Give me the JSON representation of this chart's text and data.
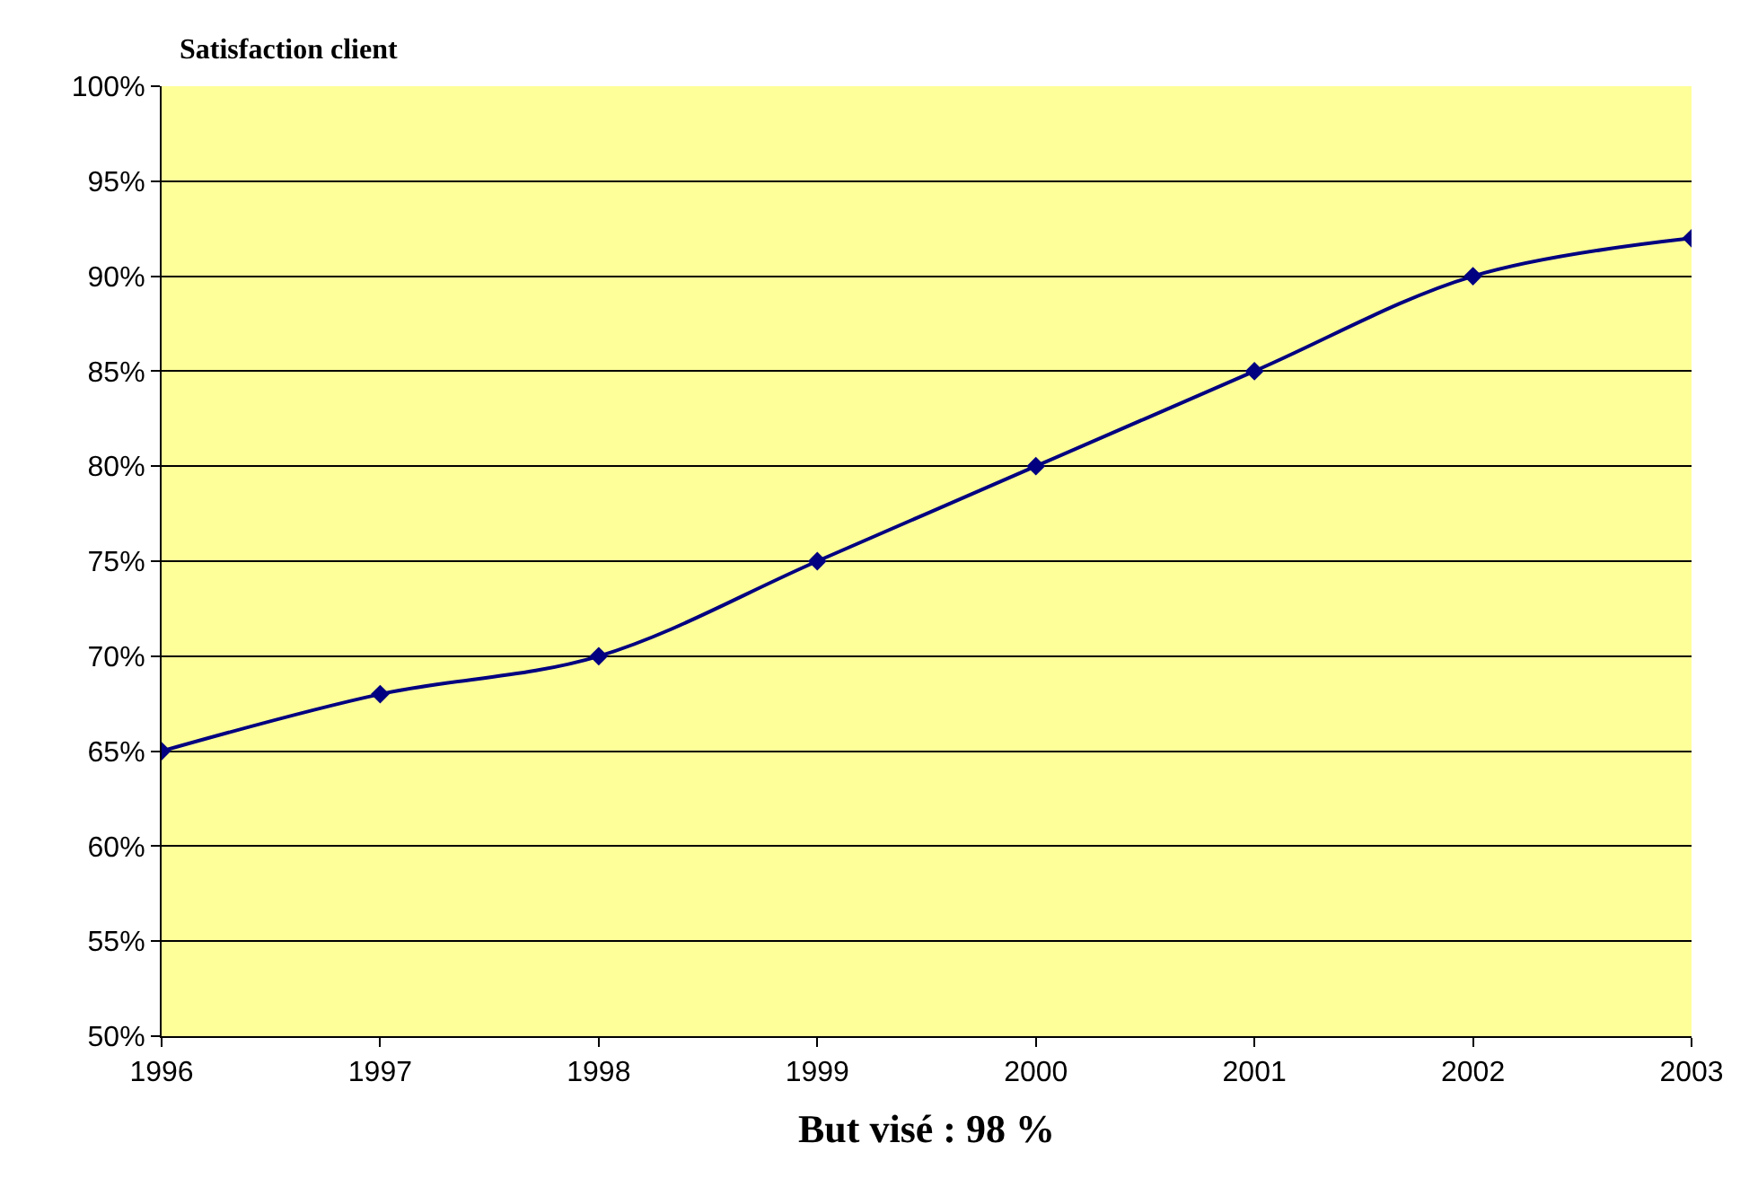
{
  "chart_data": {
    "type": "line",
    "title": "Satisfaction client",
    "xlabel": "But visé : 98 %",
    "x": [
      1996,
      1997,
      1998,
      1999,
      2000,
      2001,
      2002,
      2003
    ],
    "series": [
      {
        "color": "#000080",
        "values": [
          65,
          68,
          70,
          75,
          80,
          85,
          90,
          92
        ]
      }
    ],
    "xlim": [
      1996,
      2003
    ],
    "xticks": [
      1996,
      1997,
      1998,
      1999,
      2000,
      2001,
      2002,
      2003
    ],
    "ylim": [
      50,
      100
    ],
    "yticks": [
      {
        "value": 50,
        "label": "50%"
      },
      {
        "value": 55,
        "label": "55%"
      },
      {
        "value": 60,
        "label": "60%"
      },
      {
        "value": 65,
        "label": "65%"
      },
      {
        "value": 70,
        "label": "70%"
      },
      {
        "value": 75,
        "label": "75%"
      },
      {
        "value": 80,
        "label": "80%"
      },
      {
        "value": 85,
        "label": "85%"
      },
      {
        "value": 90,
        "label": "90%"
      },
      {
        "value": 95,
        "label": "95%"
      },
      {
        "value": 100,
        "label": "100%"
      }
    ],
    "grid": "y",
    "marker": "diamond",
    "line_style": "solid",
    "legend": false
  }
}
